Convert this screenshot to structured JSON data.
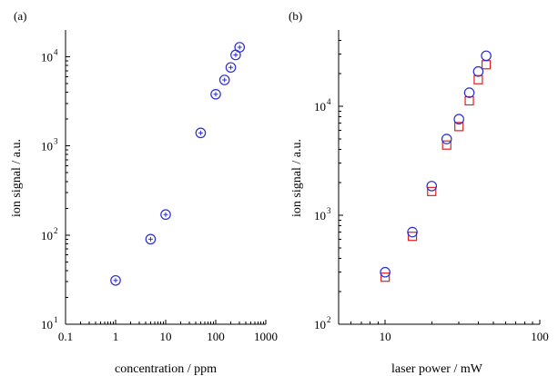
{
  "chart_data": [
    {
      "panel_label": "(a)",
      "type": "scatter",
      "x_scale": "log",
      "y_scale": "log",
      "xlabel": "concentration / ppm",
      "ylabel": "ion signal / a.u.",
      "xlim": [
        0.1,
        1000
      ],
      "ylim": [
        10,
        20000
      ],
      "x_ticks": [
        {
          "value": 0.1,
          "base": "0.1",
          "exp": ""
        },
        {
          "value": 1,
          "base": "1",
          "exp": ""
        },
        {
          "value": 10,
          "base": "10",
          "exp": ""
        },
        {
          "value": 100,
          "base": "100",
          "exp": ""
        },
        {
          "value": 1000,
          "base": "1000",
          "exp": ""
        }
      ],
      "y_ticks": [
        {
          "value": 10,
          "base": "10",
          "exp": "1"
        },
        {
          "value": 100,
          "base": "10",
          "exp": "2"
        },
        {
          "value": 1000,
          "base": "10",
          "exp": "3"
        },
        {
          "value": 10000,
          "base": "10",
          "exp": "4"
        }
      ],
      "series": [
        {
          "marker": "circle-plus",
          "color": "#2b2bd6",
          "x": [
            1,
            5,
            10,
            50,
            100,
            150,
            200,
            250,
            300
          ],
          "y": [
            31,
            90,
            170,
            1400,
            3800,
            5500,
            7600,
            10500,
            12800
          ]
        }
      ]
    },
    {
      "panel_label": "(b)",
      "type": "scatter",
      "x_scale": "log",
      "y_scale": "log",
      "xlabel": "laser power / mW",
      "ylabel": "ion signal / a.u.",
      "xlim": [
        5,
        100
      ],
      "ylim": [
        100,
        50000
      ],
      "x_ticks": [
        {
          "value": 10,
          "base": "10",
          "exp": ""
        },
        {
          "value": 100,
          "base": "100",
          "exp": ""
        }
      ],
      "y_ticks": [
        {
          "value": 100,
          "base": "10",
          "exp": "2"
        },
        {
          "value": 1000,
          "base": "10",
          "exp": "3"
        },
        {
          "value": 10000,
          "base": "10",
          "exp": "4"
        }
      ],
      "series": [
        {
          "marker": "square",
          "color": "#e02020",
          "x": [
            10,
            15,
            20,
            25,
            30,
            35,
            40,
            45
          ],
          "y": [
            270,
            640,
            1650,
            4400,
            6500,
            11200,
            17500,
            24000
          ]
        },
        {
          "marker": "circle",
          "color": "#2b2bd6",
          "x": [
            10,
            15,
            20,
            25,
            30,
            35,
            40,
            45
          ],
          "y": [
            300,
            700,
            1850,
            5000,
            7600,
            13300,
            20800,
            29000
          ]
        }
      ]
    }
  ]
}
